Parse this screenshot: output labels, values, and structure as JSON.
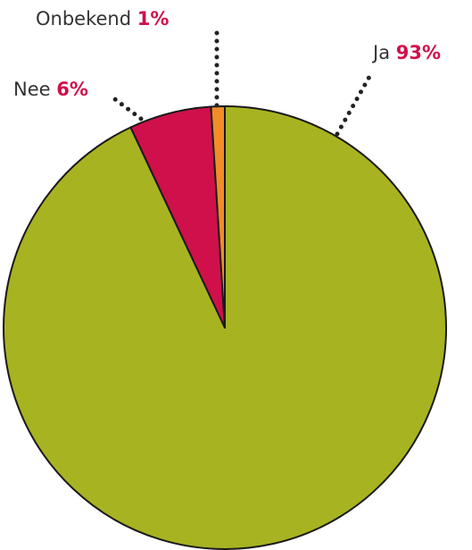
{
  "chart_data": {
    "type": "pie",
    "categories": [
      "Ja",
      "Nee",
      "Onbekend"
    ],
    "values": [
      93,
      6,
      1
    ],
    "value_labels": [
      "93%",
      "6%",
      "1%"
    ],
    "colors": [
      "#a8b321",
      "#d0104a",
      "#f28c28"
    ]
  }
}
